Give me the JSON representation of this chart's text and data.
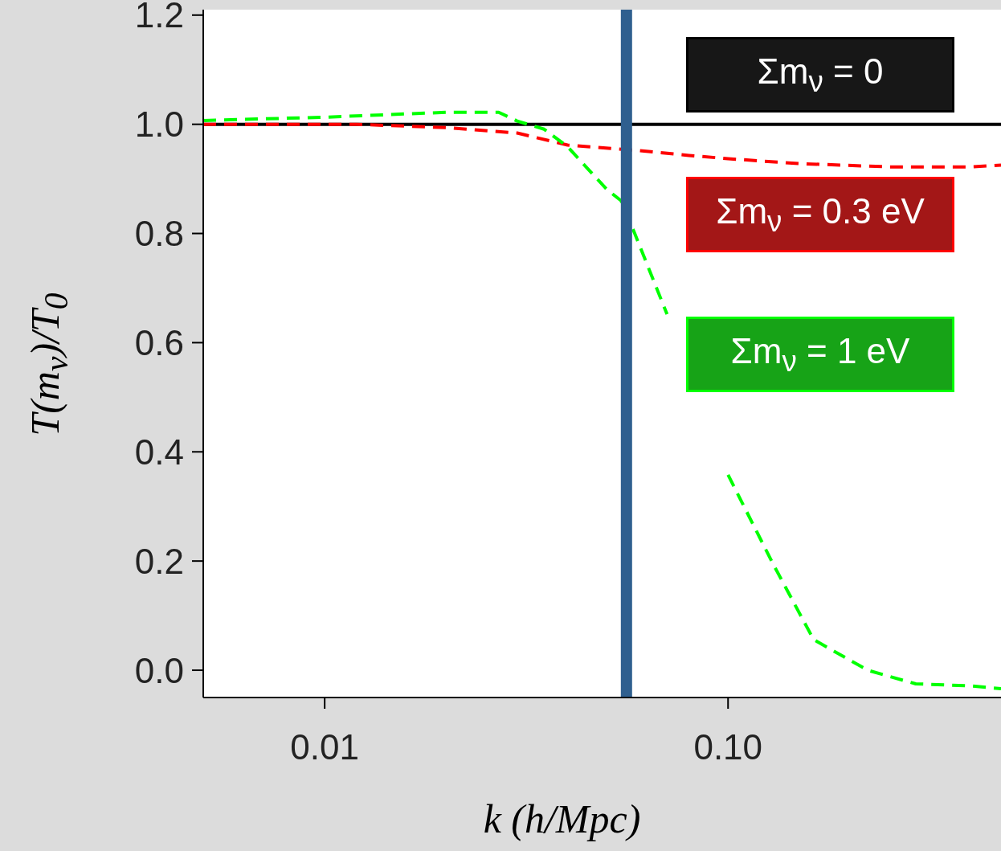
{
  "chart_data": {
    "type": "line",
    "xlabel": "k (h/Mpc)",
    "ylabel": "T(m$_{ν}$)/T$_{0}$",
    "log": "x",
    "xlim": [
      0.005,
      0.475
    ],
    "xticks": [
      {
        "value": 0.01,
        "label": "0.01"
      },
      {
        "value": 0.1,
        "label": "0.10"
      }
    ],
    "ylim": [
      -0.05,
      1.21
    ],
    "yticks": [
      {
        "value": 0,
        "label": "0.0"
      },
      {
        "value": 0.2,
        "label": "0.2"
      },
      {
        "value": 0.4,
        "label": "0.4"
      },
      {
        "value": 0.6,
        "label": "0.6"
      },
      {
        "value": 0.8,
        "label": "0.8"
      },
      {
        "value": 1,
        "label": "1.0"
      },
      {
        "value": 1.2,
        "label": "1.2"
      }
    ],
    "legend": "top right",
    "marker": "none",
    "ref_lines": [
      {
        "axis": "x",
        "value": 0.056,
        "color": "#2f5f8f"
      }
    ],
    "series": [
      {
        "name": "Σm$_{ν}$ = 0",
        "color": "#000000",
        "line_style": "solid",
        "x": [
          0.005,
          0.475
        ],
        "values": [
          1,
          1
        ]
      },
      {
        "name": "Σm$_{ν}$ = 0.3 eV",
        "color": "#ff0000",
        "line_style": "dashed",
        "x": [
          0.005,
          0.012,
          0.02,
          0.03,
          0.04,
          0.06,
          0.08,
          0.1,
          0.15,
          0.25,
          0.4,
          0.475
        ],
        "values": [
          1,
          1,
          0.994,
          0.984,
          0.962,
          0.952,
          0.943,
          0.937,
          0.928,
          0.922,
          0.922,
          0.925
        ]
      },
      {
        "name": "Σm$_{ν}$ = 1 eV",
        "color": "#00ff00",
        "line_style": "dashed",
        "x": [
          0.005,
          0.01,
          0.02,
          0.027,
          0.03,
          0.035,
          0.04,
          0.05,
          0.0543,
          0.0587,
          0.0706,
          0.0798,
          0.1,
          0.129,
          0.163,
          0.222,
          0.292,
          0.404,
          0.475
        ],
        "values": [
          1.007,
          1.013,
          1.022,
          1.022,
          1.006,
          0.991,
          0.959,
          0.881,
          0.86,
          0.8,
          0.652,
          null,
          0.358,
          0.196,
          0.056,
          0,
          -0.025,
          -0.029,
          -0.034
        ]
      }
    ]
  }
}
